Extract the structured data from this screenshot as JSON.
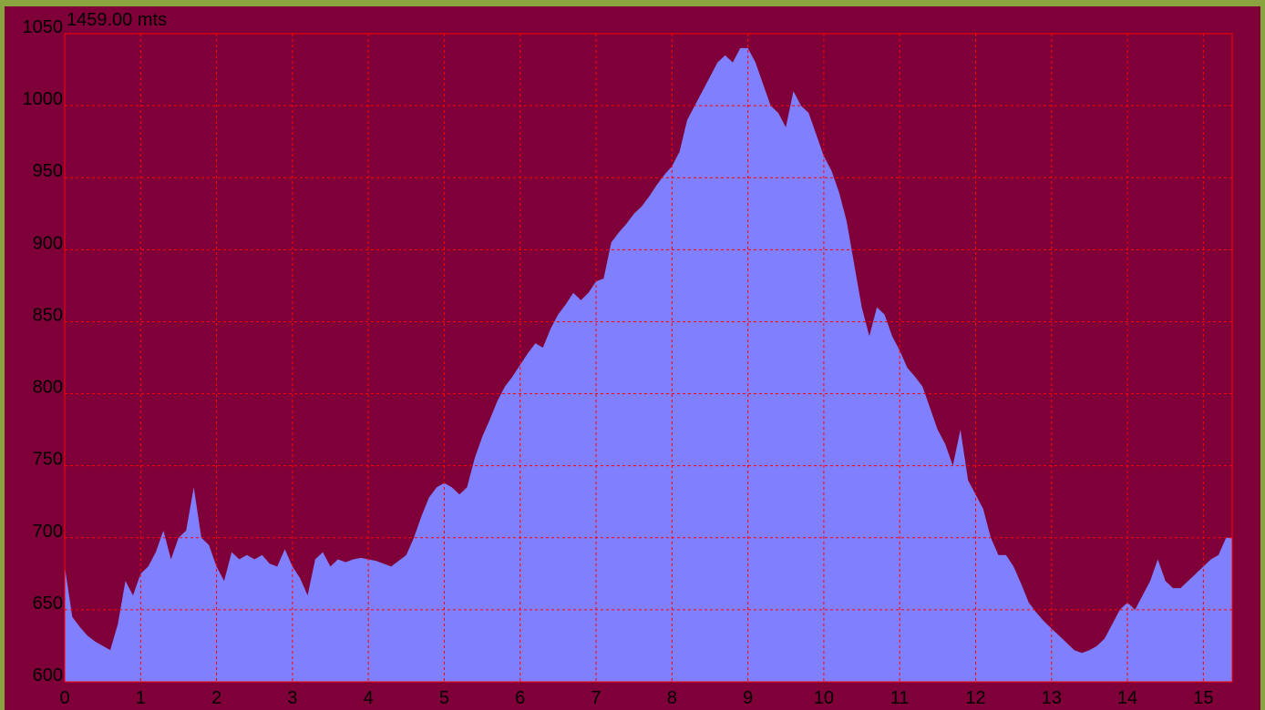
{
  "chart_data": {
    "type": "area",
    "annotation": "1459.00 mts",
    "x": [
      0,
      0.1,
      0.2,
      0.3,
      0.4,
      0.5,
      0.6,
      0.7,
      0.8,
      0.9,
      1,
      1.1,
      1.2,
      1.3,
      1.4,
      1.5,
      1.6,
      1.7,
      1.8,
      1.9,
      2,
      2.1,
      2.2,
      2.3,
      2.4,
      2.5,
      2.6,
      2.7,
      2.8,
      2.9,
      3,
      3.1,
      3.2,
      3.3,
      3.4,
      3.5,
      3.6,
      3.7,
      3.8,
      3.9,
      4,
      4.1,
      4.2,
      4.3,
      4.4,
      4.5,
      4.6,
      4.7,
      4.8,
      4.9,
      5,
      5.1,
      5.2,
      5.3,
      5.4,
      5.5,
      5.6,
      5.7,
      5.8,
      5.9,
      6,
      6.1,
      6.2,
      6.3,
      6.4,
      6.5,
      6.6,
      6.7,
      6.8,
      6.9,
      7,
      7.1,
      7.2,
      7.3,
      7.4,
      7.5,
      7.6,
      7.7,
      7.8,
      7.9,
      8,
      8.1,
      8.2,
      8.3,
      8.4,
      8.5,
      8.6,
      8.7,
      8.8,
      8.9,
      9,
      9.1,
      9.2,
      9.3,
      9.4,
      9.5,
      9.6,
      9.7,
      9.8,
      9.9,
      10,
      10.1,
      10.2,
      10.3,
      10.4,
      10.5,
      10.6,
      10.7,
      10.8,
      10.9,
      11,
      11.1,
      11.2,
      11.3,
      11.4,
      11.5,
      11.6,
      11.7,
      11.8,
      11.9,
      12,
      12.1,
      12.2,
      12.3,
      12.4,
      12.5,
      12.6,
      12.7,
      12.8,
      12.9,
      13,
      13.1,
      13.2,
      13.3,
      13.4,
      13.5,
      13.6,
      13.7,
      13.8,
      13.9,
      14,
      14.1,
      14.2,
      14.3,
      14.4,
      14.5,
      14.6,
      14.7,
      14.8,
      14.9,
      15,
      15.1,
      15.2,
      15.3,
      15.38
    ],
    "values": [
      680,
      645,
      638,
      632,
      628,
      625,
      622,
      640,
      670,
      660,
      675,
      680,
      690,
      705,
      685,
      700,
      705,
      735,
      700,
      695,
      680,
      670,
      690,
      685,
      688,
      685,
      688,
      682,
      680,
      692,
      680,
      672,
      660,
      685,
      690,
      680,
      685,
      683,
      685,
      686,
      685,
      684,
      682,
      680,
      684,
      688,
      700,
      715,
      728,
      735,
      738,
      735,
      730,
      735,
      755,
      770,
      782,
      795,
      805,
      812,
      820,
      828,
      835,
      832,
      845,
      855,
      862,
      870,
      865,
      870,
      878,
      880,
      905,
      912,
      918,
      925,
      930,
      937,
      945,
      952,
      958,
      968,
      990,
      1000,
      1010,
      1020,
      1030,
      1035,
      1030,
      1040,
      1040,
      1030,
      1015,
      1000,
      995,
      985,
      1010,
      1000,
      995,
      980,
      965,
      955,
      940,
      920,
      890,
      860,
      840,
      860,
      855,
      840,
      830,
      818,
      812,
      805,
      790,
      775,
      765,
      750,
      775,
      740,
      730,
      720,
      700,
      688,
      688,
      680,
      668,
      655,
      648,
      642,
      637,
      632,
      627,
      622,
      620,
      622,
      625,
      630,
      640,
      650,
      655,
      650,
      660,
      670,
      685,
      670,
      665,
      665,
      670,
      675,
      680,
      685,
      688,
      700,
      700
    ],
    "color": "#8080ff",
    "xlim": [
      0,
      15.38
    ],
    "ylim": [
      600,
      1050
    ],
    "xticks": [
      0,
      1,
      2,
      3,
      4,
      5,
      6,
      7,
      8,
      9,
      10,
      11,
      12,
      13,
      14,
      15
    ],
    "yticks": [
      600,
      650,
      700,
      750,
      800,
      850,
      900,
      950,
      1000,
      1050
    ],
    "grid": true
  }
}
